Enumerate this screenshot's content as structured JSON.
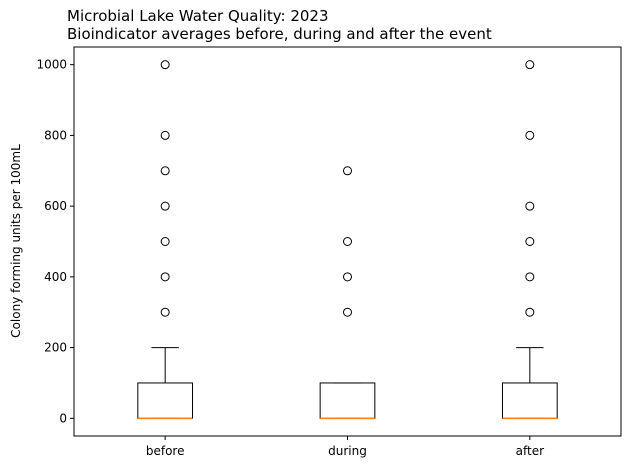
{
  "chart_data": {
    "type": "box",
    "title": "Microbial Lake Water Quality: 2023",
    "subtitle": "Bioindicator averages before, during and after the event",
    "xlabel": "",
    "ylabel": "Colony forming units per 100mL",
    "ylim": [
      -50,
      1050
    ],
    "yticks": [
      0,
      200,
      400,
      600,
      800,
      1000
    ],
    "ytick_labels": [
      "0",
      "200",
      "400",
      "600",
      "800",
      "1000"
    ],
    "categories": [
      "before",
      "during",
      "after"
    ],
    "grid": false,
    "boxes": [
      {
        "name": "before",
        "whisker_low": 0,
        "q1": 0,
        "median": 0,
        "q3": 100,
        "whisker_high": 200,
        "outliers": [
          300,
          400,
          500,
          600,
          700,
          800,
          1000
        ]
      },
      {
        "name": "during",
        "whisker_low": 0,
        "q1": 0,
        "median": 0,
        "q3": 100,
        "whisker_high": 100,
        "outliers": [
          300,
          400,
          500,
          700
        ]
      },
      {
        "name": "after",
        "whisker_low": 0,
        "q1": 0,
        "median": 0,
        "q3": 100,
        "whisker_high": 200,
        "outliers": [
          300,
          400,
          500,
          600,
          800,
          1000
        ]
      }
    ],
    "colors": {
      "box": "#000000",
      "median": "#ff7f0e",
      "outlier": "#000000"
    }
  }
}
